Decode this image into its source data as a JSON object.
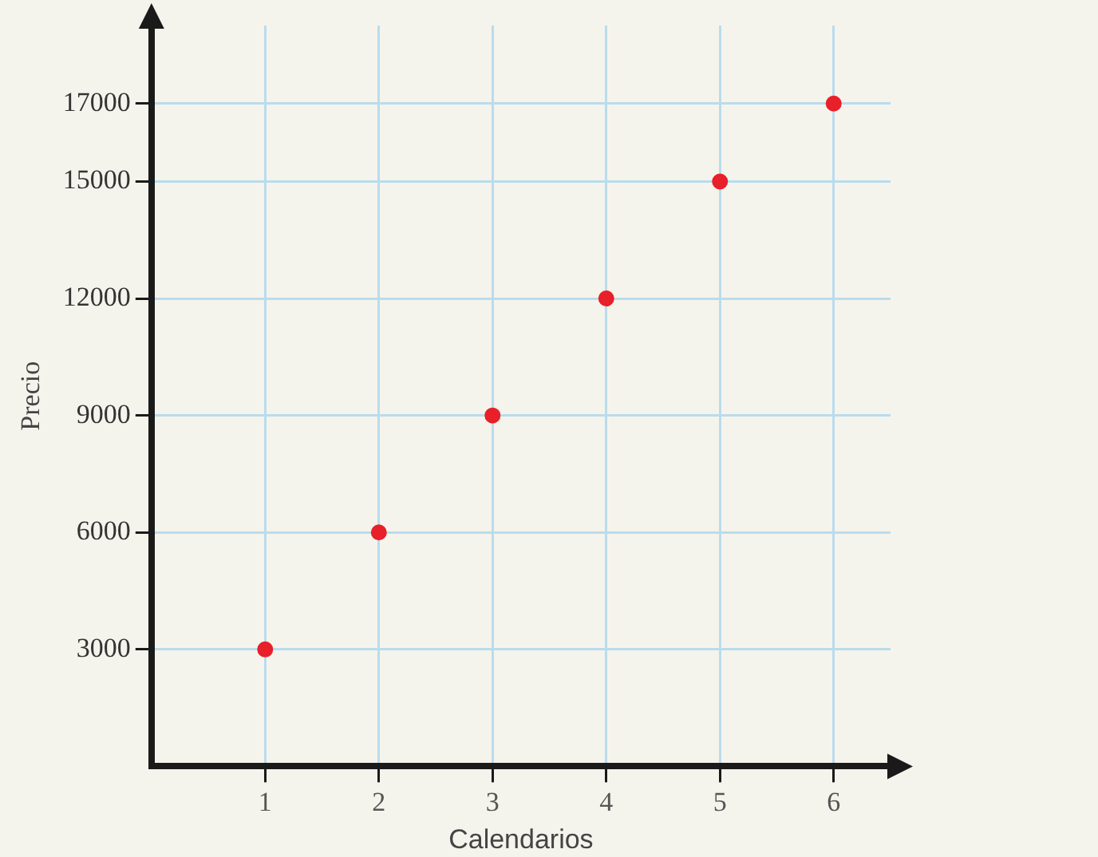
{
  "chart_data": {
    "type": "scatter",
    "xlabel": "Calendarios",
    "ylabel": "Precio",
    "x": [
      1,
      2,
      3,
      4,
      5,
      6
    ],
    "series": [
      {
        "color": "#e8202a",
        "values": [
          3000,
          6000,
          9000,
          12000,
          15000,
          17000
        ]
      }
    ],
    "xlim": [
      0,
      6.5
    ],
    "xticks": [
      1,
      2,
      3,
      4,
      5,
      6
    ],
    "ylim": [
      0,
      19000
    ],
    "yticks": [
      3000,
      6000,
      9000,
      12000,
      15000,
      17000
    ],
    "grid": true,
    "legend": false,
    "marker": "circle"
  }
}
